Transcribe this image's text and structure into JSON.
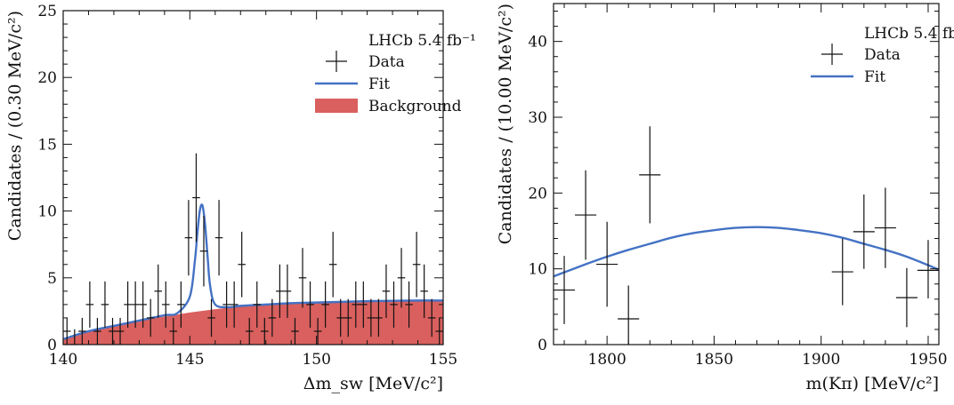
{
  "chart_data": [
    {
      "type": "scatter",
      "title": "",
      "xlabel": "Δm_sw [MeV/c²]",
      "ylabel": "Candidates / (0.30 MeV/c²)",
      "xlim": [
        140,
        155
      ],
      "ylim": [
        0,
        25
      ],
      "x_ticks": [
        "140",
        "145",
        "150",
        "155"
      ],
      "y_ticks": [
        "0",
        "5",
        "10",
        "15",
        "20",
        "25"
      ],
      "legend": {
        "placement": "top-right",
        "header": "LHCb 5.4 fb⁻¹",
        "entries": [
          "Data",
          "Fit",
          "Background"
        ]
      },
      "colors": {
        "data": "#111111",
        "fit": "#4472c4",
        "background": "#d9605e"
      },
      "series": [
        {
          "name": "Data",
          "x": [
            140.15,
            140.45,
            140.75,
            141.05,
            141.35,
            141.65,
            141.95,
            142.25,
            142.55,
            142.85,
            143.15,
            143.45,
            143.75,
            144.05,
            144.35,
            144.65,
            144.95,
            145.25,
            145.55,
            145.85,
            146.15,
            146.45,
            146.75,
            147.05,
            147.35,
            147.65,
            147.95,
            148.25,
            148.55,
            148.85,
            149.15,
            149.45,
            149.75,
            150.05,
            150.35,
            150.65,
            150.95,
            151.25,
            151.55,
            151.85,
            152.15,
            152.45,
            152.75,
            153.05,
            153.35,
            153.65,
            153.95,
            154.25,
            154.55,
            154.85
          ],
          "y": [
            1,
            0,
            1,
            3,
            1,
            3,
            1,
            1,
            3,
            3,
            3,
            2,
            4,
            3,
            1,
            3,
            8,
            11,
            7,
            2,
            8,
            3,
            3,
            6,
            1,
            3,
            1,
            2,
            4,
            4,
            1,
            5,
            3,
            1,
            3,
            6,
            2,
            2,
            3,
            3,
            2,
            2,
            4,
            3,
            5,
            3,
            6,
            4,
            2,
            1
          ]
        },
        {
          "name": "Fit",
          "x": [
            140,
            141,
            142,
            143,
            144,
            144.5,
            145,
            145.2,
            145.3,
            145.4,
            145.5,
            145.6,
            145.7,
            145.8,
            146,
            146.5,
            147,
            148,
            149,
            150,
            151,
            152,
            153,
            154,
            155
          ],
          "y": [
            0.4,
            1.0,
            1.4,
            1.8,
            2.2,
            2.35,
            3.6,
            6.3,
            8.4,
            10.1,
            10.4,
            9.0,
            6.6,
            4.4,
            3.0,
            2.8,
            2.9,
            3.0,
            3.1,
            3.15,
            3.2,
            3.25,
            3.28,
            3.3,
            3.3
          ]
        },
        {
          "name": "Background",
          "x": [
            140,
            141,
            142,
            143,
            144,
            145,
            146,
            147,
            148,
            149,
            150,
            151,
            152,
            153,
            154,
            155
          ],
          "y": [
            0.4,
            1.0,
            1.4,
            1.8,
            2.1,
            2.4,
            2.65,
            2.85,
            3.0,
            3.05,
            3.1,
            3.15,
            3.2,
            3.25,
            3.28,
            3.3
          ]
        }
      ]
    },
    {
      "type": "scatter",
      "title": "",
      "xlabel": "m(Kπ) [MeV/c²]",
      "ylabel": "Candidates / (10.00 MeV/c²)",
      "xlim": [
        1775,
        1955
      ],
      "ylim": [
        0,
        45
      ],
      "x_ticks": [
        "1800",
        "1850",
        "1900",
        "1950"
      ],
      "y_ticks": [
        "0",
        "10",
        "20",
        "30",
        "40"
      ],
      "legend": {
        "placement": "top-right",
        "header": "LHCb 5.4 fb⁻¹",
        "entries": [
          "Data",
          "Fit"
        ]
      },
      "colors": {
        "data": "#111111",
        "fit": "#4472c4"
      },
      "series": [
        {
          "name": "Data",
          "x": [
            1780,
            1790,
            1800,
            1810,
            1820,
            1910,
            1920,
            1930,
            1940,
            1950
          ],
          "y": [
            7.2,
            17.1,
            10.6,
            3.4,
            22.4,
            9.6,
            14.9,
            15.4,
            6.2,
            9.8
          ],
          "yerr_low": [
            4.5,
            5.9,
            5.6,
            3.4,
            6.4,
            4.4,
            4.9,
            5.3,
            3.9,
            3.7
          ],
          "yerr_high": [
            4.5,
            5.9,
            5.6,
            4.4,
            6.4,
            4.4,
            4.9,
            5.3,
            3.9,
            4.0
          ]
        },
        {
          "name": "Fit",
          "x": [
            1775,
            1790,
            1800,
            1810,
            1820,
            1830,
            1840,
            1850,
            1860,
            1870,
            1880,
            1890,
            1900,
            1910,
            1920,
            1930,
            1940,
            1955
          ],
          "y": [
            9.0,
            10.6,
            11.6,
            12.5,
            13.3,
            14.1,
            14.7,
            15.1,
            15.4,
            15.5,
            15.4,
            15.1,
            14.7,
            14.1,
            13.3,
            12.5,
            11.6,
            9.9
          ]
        }
      ]
    }
  ]
}
